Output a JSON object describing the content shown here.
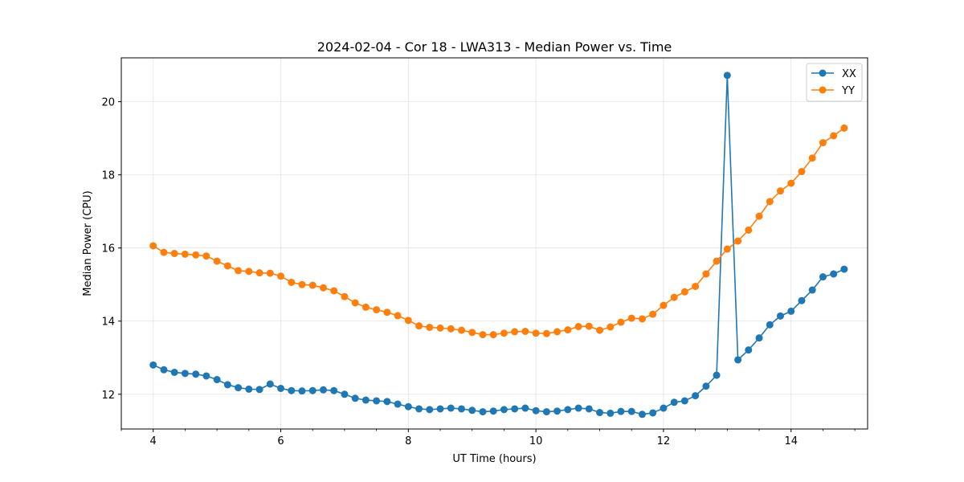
{
  "chart_data": {
    "type": "line",
    "title": "2024-02-04 - Cor 18 - LWA313 - Median Power vs. Time",
    "xlabel": "UT Time (hours)",
    "ylabel": "Median Power (CPU)",
    "xlim": [
      3.5,
      15.2
    ],
    "ylim": [
      11.05,
      21.2
    ],
    "xticks": [
      4,
      6,
      8,
      10,
      12,
      14
    ],
    "xtick_labels": [
      "4",
      "6",
      "8",
      "10",
      "12",
      "14"
    ],
    "xminor": [
      3.5,
      4.5,
      5,
      5.5,
      6.5,
      7,
      7.5,
      8.5,
      9,
      9.5,
      10.5,
      11,
      11.5,
      12.5,
      13,
      13.5,
      14.5,
      15
    ],
    "yticks": [
      12,
      14,
      16,
      18,
      20
    ],
    "ytick_labels": [
      "12",
      "14",
      "16",
      "18",
      "20"
    ],
    "grid": true,
    "legend_position": "top-right",
    "x": [
      4.0,
      4.167,
      4.333,
      4.5,
      4.667,
      4.833,
      5.0,
      5.167,
      5.333,
      5.5,
      5.667,
      5.833,
      6.0,
      6.167,
      6.333,
      6.5,
      6.667,
      6.833,
      7.0,
      7.167,
      7.333,
      7.5,
      7.667,
      7.833,
      8.0,
      8.167,
      8.333,
      8.5,
      8.667,
      8.833,
      9.0,
      9.167,
      9.333,
      9.5,
      9.667,
      9.833,
      10.0,
      10.167,
      10.333,
      10.5,
      10.667,
      10.833,
      11.0,
      11.167,
      11.333,
      11.5,
      11.667,
      11.833,
      12.0,
      12.167,
      12.333,
      12.5,
      12.667,
      12.833,
      13.0,
      13.167,
      13.333,
      13.5,
      13.667,
      13.833,
      14.0,
      14.167,
      14.333,
      14.5,
      14.667,
      14.833
    ],
    "series": [
      {
        "name": "XX",
        "color": "#1f77b4",
        "values": [
          12.8,
          12.67,
          12.6,
          12.57,
          12.55,
          12.5,
          12.4,
          12.26,
          12.18,
          12.14,
          12.13,
          12.28,
          12.16,
          12.1,
          12.09,
          12.1,
          12.12,
          12.1,
          12.0,
          11.89,
          11.84,
          11.82,
          11.8,
          11.73,
          11.66,
          11.6,
          11.58,
          11.6,
          11.62,
          11.6,
          11.56,
          11.52,
          11.54,
          11.58,
          11.6,
          11.62,
          11.55,
          11.52,
          11.54,
          11.58,
          11.62,
          11.6,
          11.5,
          11.48,
          11.53,
          11.53,
          11.45,
          11.49,
          11.62,
          11.78,
          11.82,
          11.96,
          12.22,
          12.52,
          20.72,
          12.94,
          13.21,
          13.54,
          13.9,
          14.14,
          14.27,
          14.56,
          14.85,
          15.21,
          15.29,
          15.42
        ]
      },
      {
        "name": "YY",
        "color": "#ff7f0e",
        "values": [
          16.06,
          15.88,
          15.85,
          15.83,
          15.81,
          15.78,
          15.64,
          15.51,
          15.38,
          15.36,
          15.32,
          15.31,
          15.23,
          15.06,
          15.0,
          14.98,
          14.91,
          14.83,
          14.67,
          14.5,
          14.38,
          14.31,
          14.24,
          14.15,
          14.02,
          13.87,
          13.83,
          13.81,
          13.79,
          13.75,
          13.69,
          13.63,
          13.63,
          13.67,
          13.71,
          13.72,
          13.67,
          13.66,
          13.71,
          13.76,
          13.85,
          13.86,
          13.75,
          13.84,
          13.97,
          14.08,
          14.06,
          14.19,
          14.43,
          14.65,
          14.8,
          14.95,
          15.29,
          15.64,
          15.97,
          16.19,
          16.49,
          16.87,
          17.27,
          17.56,
          17.77,
          18.09,
          18.46,
          18.88,
          19.07,
          19.28
        ]
      }
    ]
  }
}
